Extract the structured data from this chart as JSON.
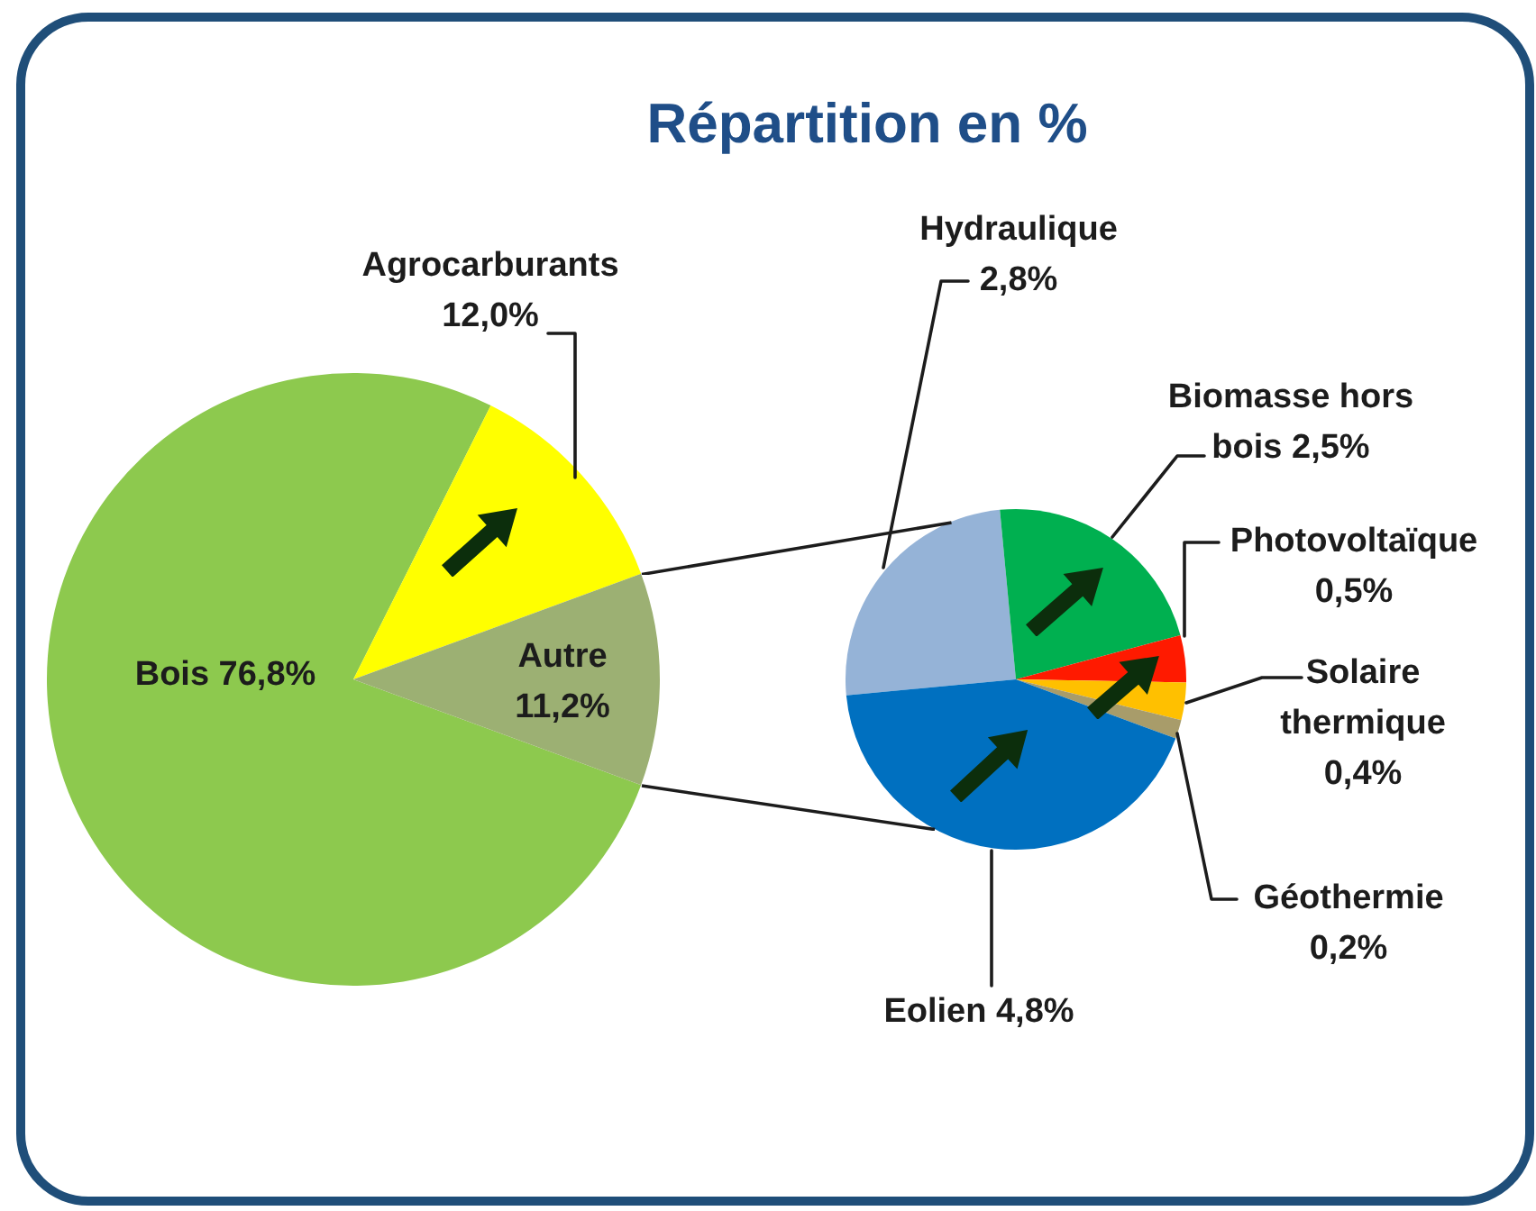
{
  "chart_data": [
    {
      "type": "pie",
      "title": "Répartition en %",
      "categories": [
        "Bois",
        "Agrocarburants",
        "Autre"
      ],
      "values": [
        76.8,
        12.0,
        11.2
      ],
      "colors": [
        "#8dc94e",
        "#ffff00",
        "#9cb073"
      ],
      "value_labels": [
        "76,8%",
        "12,0%",
        "11,2%"
      ]
    },
    {
      "type": "pie",
      "categories": [
        "Hydraulique",
        "Biomasse hors bois",
        "Photovoltaïque",
        "Solaire thermique",
        "Géothermie",
        "Eolien"
      ],
      "values": [
        2.8,
        2.5,
        0.5,
        0.4,
        0.2,
        4.8
      ],
      "colors": [
        "#95b3d7",
        "#00b050",
        "#ff1a00",
        "#ffc000",
        "#a89c6a",
        "#0070c0"
      ],
      "value_labels": [
        "2,8%",
        "2,5%",
        "0,5%",
        "0,4%",
        "0,2%",
        "4,8%"
      ]
    }
  ]
}
